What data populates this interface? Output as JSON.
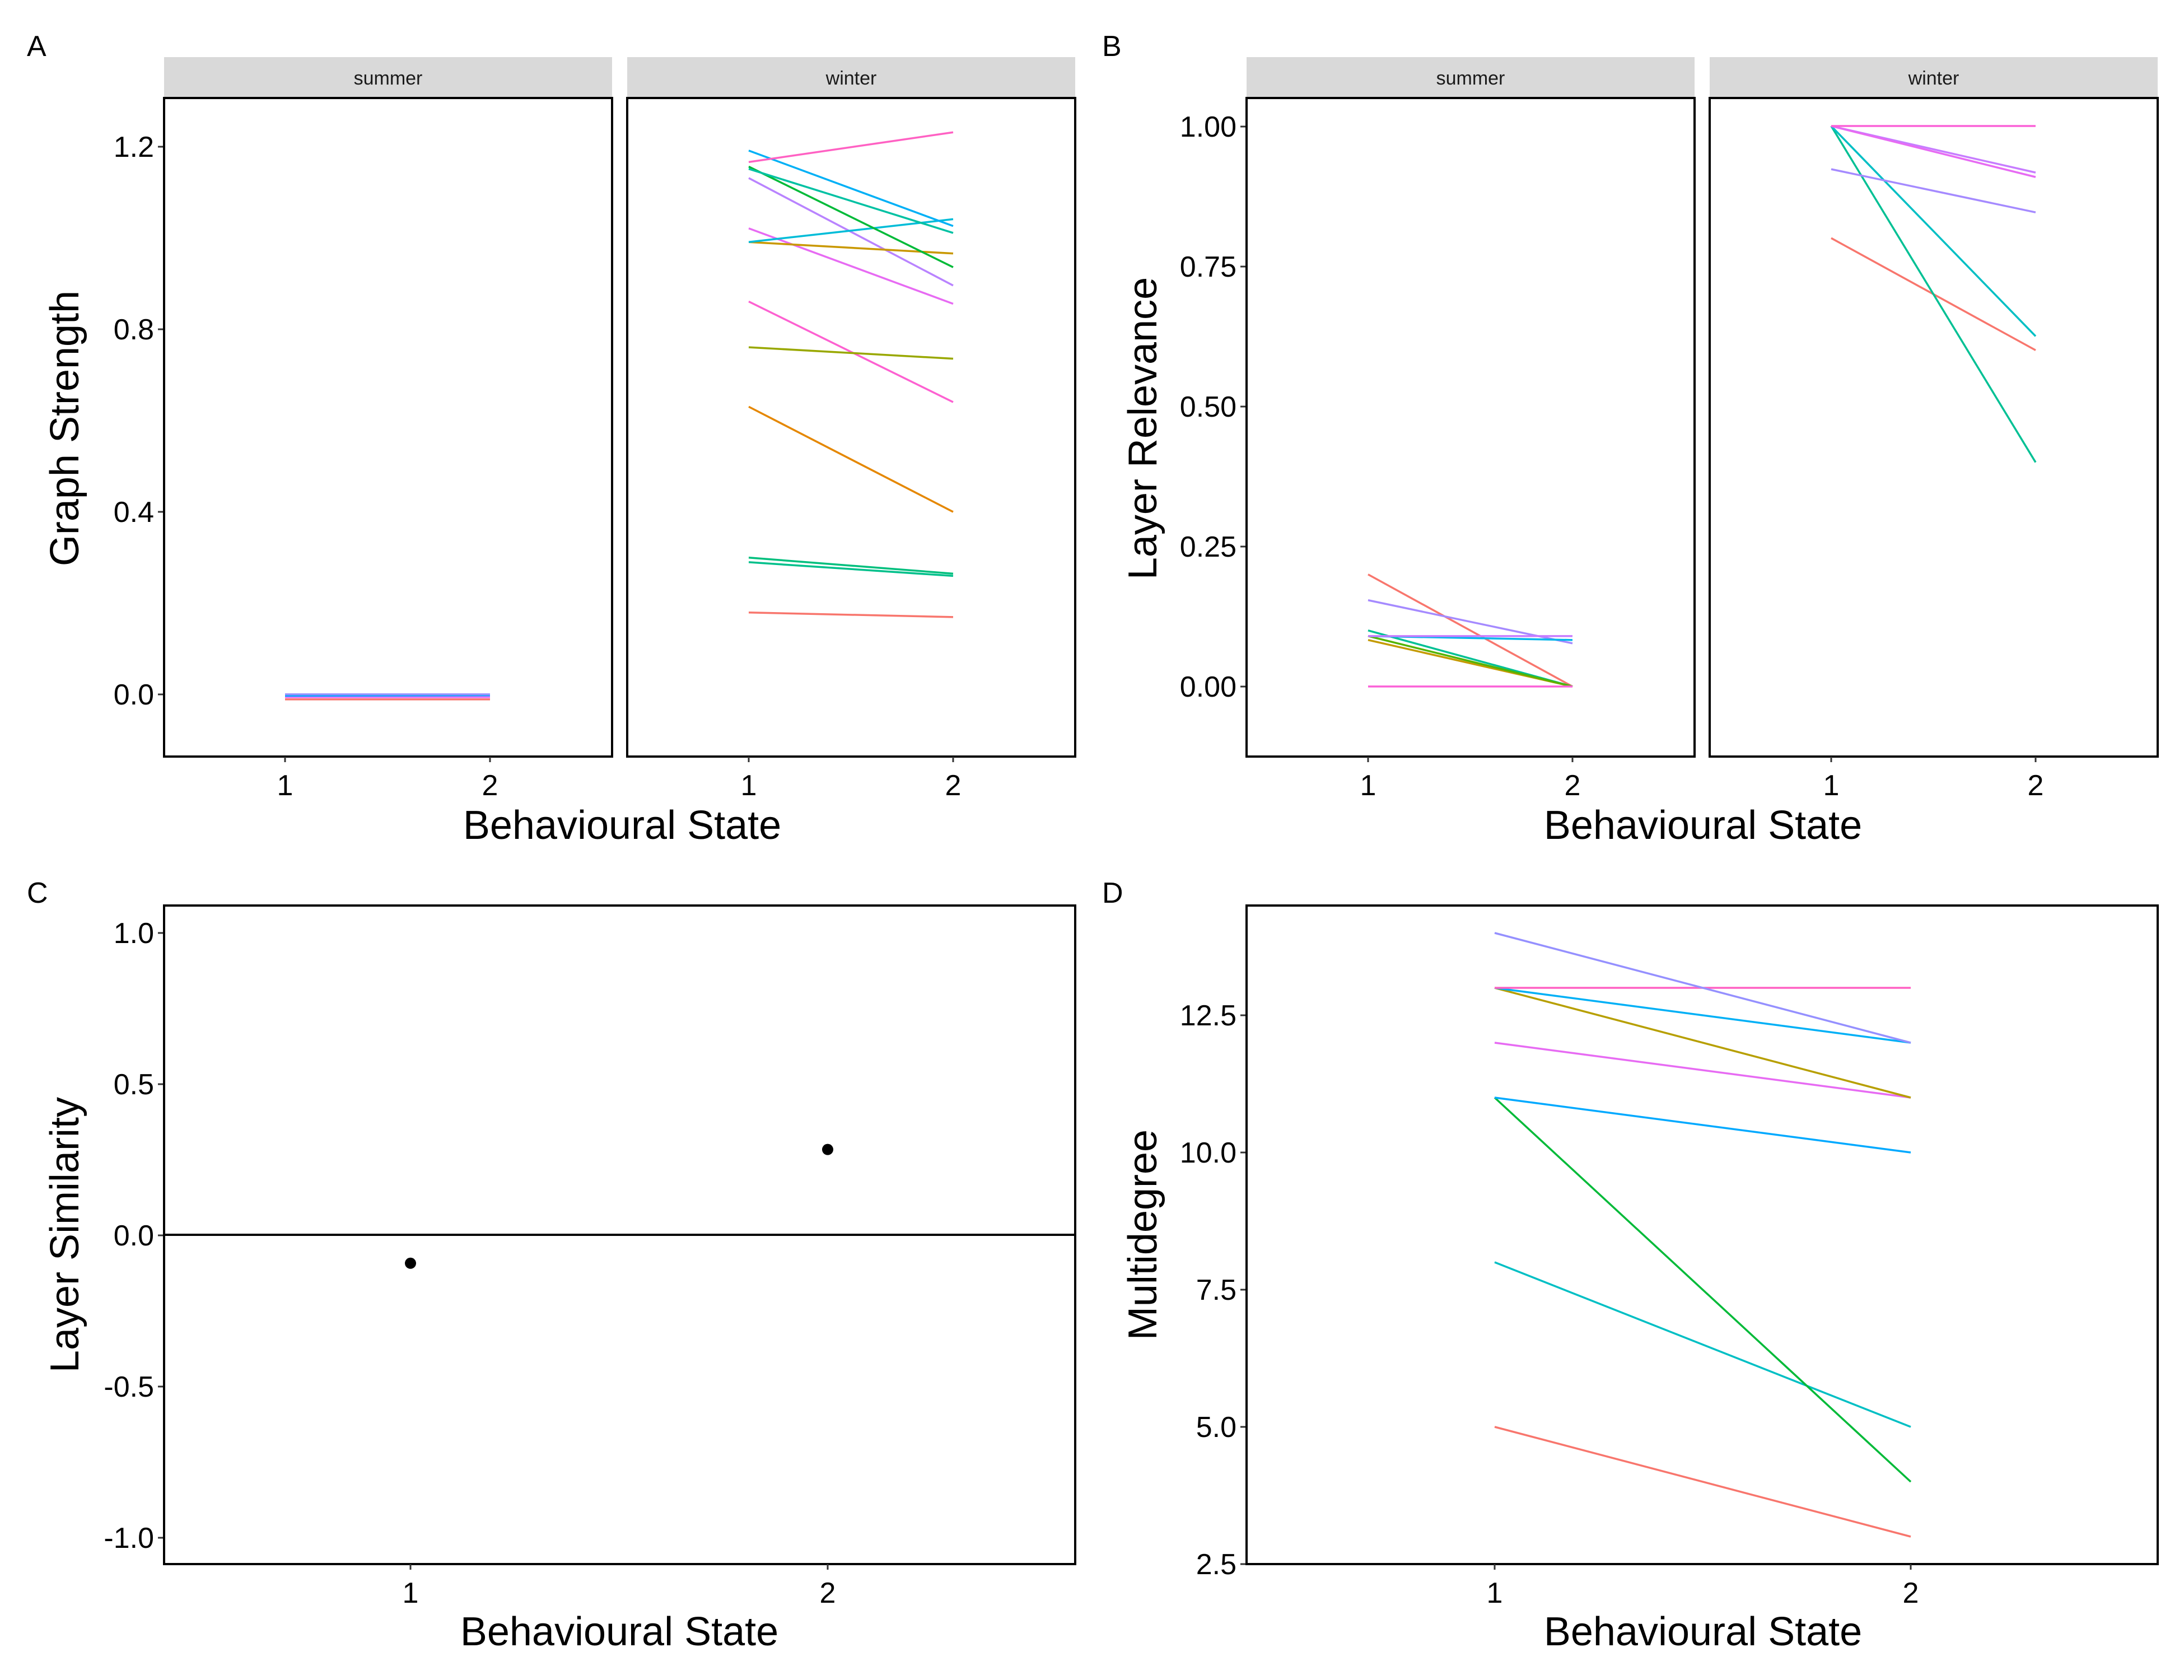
{
  "figure": {
    "panel_labels": [
      "A",
      "B",
      "C",
      "D"
    ]
  },
  "chart_data": [
    {
      "panel": "A",
      "type": "line",
      "xlabel": "Behavioural State",
      "ylabel": "Graph Strength",
      "x_categories": [
        "1",
        "2"
      ],
      "ylim": [
        -0.125,
        1.315
      ],
      "yticks": [
        "0.0",
        "0.4",
        "0.8",
        "1.2"
      ],
      "ytick_values": [
        0,
        0.4,
        0.8,
        1.2
      ],
      "facets": [
        {
          "name": "summer",
          "series": [
            {
              "color": "#F8766D",
              "values": [
                0.0,
                0.0
              ]
            },
            {
              "color": "#E76BF3",
              "values": [
                0.005,
                0.005
              ]
            },
            {
              "color": "#00A9FF",
              "values": [
                0.008,
                0.009
              ]
            },
            {
              "color": "#9590FF",
              "values": [
                0.011,
                0.011
              ]
            }
          ]
        },
        {
          "name": "winter",
          "series": [
            {
              "color": "#F8766D",
              "values": [
                0.19,
                0.18
              ]
            },
            {
              "color": "#00BF7D",
              "values": [
                0.31,
                0.275
              ]
            },
            {
              "color": "#00C08B",
              "values": [
                0.3,
                0.27
              ]
            },
            {
              "color": "#E58700",
              "values": [
                0.64,
                0.41
              ]
            },
            {
              "color": "#FD61D1",
              "values": [
                0.87,
                0.65
              ]
            },
            {
              "color": "#99A800",
              "values": [
                0.77,
                0.745
              ]
            },
            {
              "color": "#E76BF3",
              "values": [
                1.03,
                0.865
              ]
            },
            {
              "color": "#B983FF",
              "values": [
                1.14,
                0.905
              ]
            },
            {
              "color": "#C99800",
              "values": [
                1.0,
                0.975
              ]
            },
            {
              "color": "#00BCD8",
              "values": [
                1.0,
                1.05
              ]
            },
            {
              "color": "#00BA38",
              "values": [
                1.165,
                0.945
              ]
            },
            {
              "color": "#00C1A3",
              "values": [
                1.16,
                1.02
              ]
            },
            {
              "color": "#00B0F6",
              "values": [
                1.2,
                1.035
              ]
            },
            {
              "color": "#FF61C3",
              "values": [
                1.175,
                1.24
              ]
            }
          ]
        }
      ]
    },
    {
      "panel": "B",
      "type": "line",
      "xlabel": "Behavioural State",
      "ylabel": "Layer Relevance",
      "x_categories": [
        "1",
        "2"
      ],
      "ylim": [
        -0.125,
        1.05
      ],
      "yticks": [
        "0.00",
        "0.25",
        "0.50",
        "0.75",
        "1.00"
      ],
      "ytick_values": [
        0,
        0.25,
        0.5,
        0.75,
        1.0
      ],
      "facets": [
        {
          "name": "summer",
          "series": [
            {
              "color": "#F8766D",
              "values": [
                0.2,
                0.0
              ]
            },
            {
              "color": "#C49A00",
              "values": [
                0.083,
                0.0
              ]
            },
            {
              "color": "#00C094",
              "values": [
                0.1,
                0.0
              ]
            },
            {
              "color": "#53B400",
              "values": [
                0.09,
                0.0
              ]
            },
            {
              "color": "#A58AFF",
              "values": [
                0.154,
                0.077
              ]
            },
            {
              "color": "#00B6EB",
              "values": [
                0.09,
                0.083
              ]
            },
            {
              "color": "#C77CFF",
              "values": [
                0.09,
                0.09
              ]
            },
            {
              "color": "#FB61D7",
              "values": [
                0.0,
                0.0
              ]
            }
          ]
        },
        {
          "name": "winter",
          "series": [
            {
              "color": "#F8766D",
              "values": [
                0.8,
                0.6
              ]
            },
            {
              "color": "#00C094",
              "values": [
                1.0,
                0.4
              ]
            },
            {
              "color": "#00BFC4",
              "values": [
                1.0,
                0.625
              ]
            },
            {
              "color": "#A58AFF",
              "values": [
                0.923,
                0.846
              ]
            },
            {
              "color": "#C77CFF",
              "values": [
                1.0,
                0.917
              ]
            },
            {
              "color": "#E76BF3",
              "values": [
                1.0,
                0.909
              ]
            },
            {
              "color": "#FB61D7",
              "values": [
                1.0,
                1.0
              ]
            }
          ]
        }
      ]
    },
    {
      "panel": "C",
      "type": "scatter",
      "xlabel": "Behavioural State",
      "ylabel": "Layer Similarity",
      "x_categories": [
        "1",
        "2"
      ],
      "ylim": [
        -1.1,
        1.1
      ],
      "yticks": [
        "-1.0",
        "-0.5",
        "0.0",
        "0.5",
        "1.0"
      ],
      "ytick_values": [
        -1,
        -0.5,
        0,
        0.5,
        1
      ],
      "hline": 0,
      "points": [
        {
          "x": "1",
          "y": -0.095
        },
        {
          "x": "2",
          "y": 0.285
        }
      ]
    },
    {
      "panel": "D",
      "type": "line",
      "xlabel": "Behavioural State",
      "ylabel": "Multidegree",
      "x_categories": [
        "1",
        "2"
      ],
      "ylim": [
        2.5,
        14.5
      ],
      "yticks": [
        "2.5",
        "5.0",
        "7.5",
        "10.0",
        "12.5"
      ],
      "ytick_values": [
        2.5,
        5.0,
        7.5,
        10.0,
        12.5
      ],
      "series": [
        {
          "color": "#F8766D",
          "values": [
            5,
            3
          ]
        },
        {
          "color": "#00BFC4",
          "values": [
            8,
            5
          ]
        },
        {
          "color": "#00BA38",
          "values": [
            11,
            4
          ]
        },
        {
          "color": "#00A9FF",
          "values": [
            11,
            10
          ]
        },
        {
          "color": "#E76BF3",
          "values": [
            12,
            11
          ]
        },
        {
          "color": "#B79F00",
          "values": [
            13,
            11
          ]
        },
        {
          "color": "#00B0F6",
          "values": [
            13,
            12
          ]
        },
        {
          "color": "#FF61C3",
          "values": [
            13,
            13
          ]
        },
        {
          "color": "#9590FF",
          "values": [
            14,
            12
          ]
        }
      ]
    }
  ]
}
